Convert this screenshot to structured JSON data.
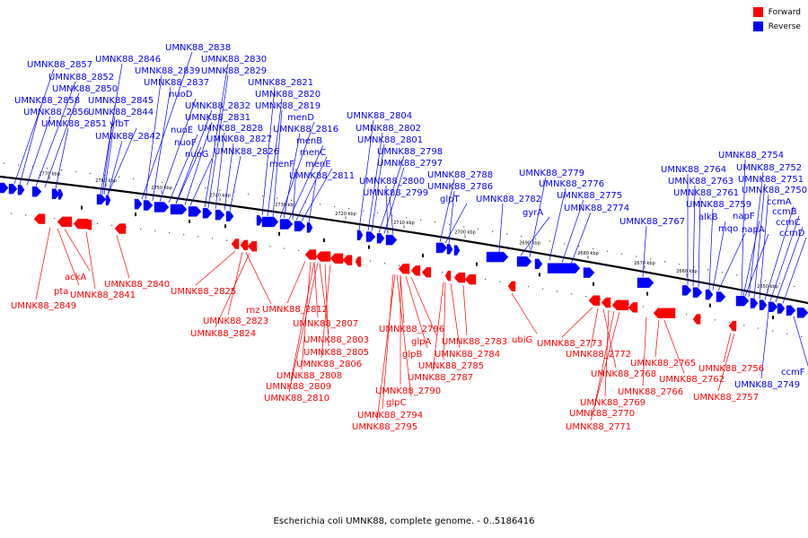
{
  "legend": {
    "forward": {
      "label": "Forward",
      "color": "#ff0000"
    },
    "reverse": {
      "label": "Reverse",
      "color": "#0000ff"
    }
  },
  "caption": "Escherichia coli UMNK88, complete genome. - 0..5186416",
  "colors": {
    "forward": "#ff0000",
    "reverse": "#0000ff",
    "backbone": "#000000"
  },
  "ticks": [
    "2770 kbp",
    "2760 kbp",
    "2750 kbp",
    "2740 kbp",
    "2730 kbp",
    "2720 kbp",
    "2710 kbp",
    "2700 kbp",
    "2690 kbp",
    "2680 kbp",
    "2670 kbp",
    "2660 kbp",
    "2650 kbp"
  ],
  "labels": {
    "reverse": [
      "UMNK88_2857",
      "UMNK88_2852",
      "UMNK88_2850",
      "UMNK88_2858",
      "UMNK88_2856",
      "UMNK88_2851",
      "UMNK88_2846",
      "UMNK88_2845",
      "UMNK88_2844",
      "yfbT",
      "UMNK88_2842",
      "UMNK88_2838",
      "UMNK88_2839",
      "UMNK88_2837",
      "nuoD",
      "UMNK88_2832",
      "UMNK88_2831",
      "nuoE",
      "nuoF",
      "nuoG",
      "UMNK88_2830",
      "UMNK88_2829",
      "UMNK88_2828",
      "UMNK88_2827",
      "UMNK88_2826",
      "UMNK88_2821",
      "UMNK88_2820",
      "UMNK88_2819",
      "menD",
      "UMNK88_2816",
      "menB",
      "menC",
      "menF",
      "menE",
      "UMNK88_2811",
      "UMNK88_2804",
      "UMNK88_2802",
      "UMNK88_2801",
      "UMNK88_2798",
      "UMNK88_2797",
      "UMNK88_2800",
      "UMNK88_2799",
      "UMNK88_2788",
      "UMNK88_2786",
      "glpT",
      "UMNK88_2782",
      "gyrA",
      "UMNK88_2779",
      "UMNK88_2776",
      "UMNK88_2775",
      "UMNK88_2774",
      "UMNK88_2767",
      "UMNK88_2764",
      "UMNK88_2763",
      "UMNK88_2761",
      "UMNK88_2759",
      "alkB",
      "mqo",
      "UMNK88_2754",
      "UMNK88_2752",
      "UMNK88_2751",
      "UMNK88_2750",
      "ccmA",
      "napF",
      "ccmB",
      "ccmC",
      "napA",
      "ccmD",
      "ccmF",
      "UMNK88_2749"
    ],
    "forward": [
      "ackA",
      "pta",
      "UMNK88_2849",
      "UMNK88_2841",
      "UMNK88_2840",
      "UMNK88_2825",
      "rnz",
      "UMNK88_2823",
      "UMNK88_2824",
      "UMNK88_2812",
      "UMNK88_2807",
      "UMNK88_2803",
      "UMNK88_2805",
      "UMNK88_2806",
      "UMNK88_2808",
      "UMNK88_2809",
      "UMNK88_2810",
      "UMNK88_2796",
      "glpA",
      "glpB",
      "UMNK88_2790",
      "glpC",
      "UMNK88_2794",
      "UMNK88_2795",
      "UMNK88_2784",
      "UMNK88_2785",
      "UMNK88_2787",
      "UMNK88_2783",
      "ubiG",
      "UMNK88_2773",
      "UMNK88_2772",
      "UMNK88_2768",
      "UMNK88_2769",
      "UMNK88_2770",
      "UMNK88_2771",
      "UMNK88_2765",
      "UMNK88_2762",
      "UMNK88_2766",
      "UMNK88_2756",
      "UMNK88_2757"
    ]
  }
}
